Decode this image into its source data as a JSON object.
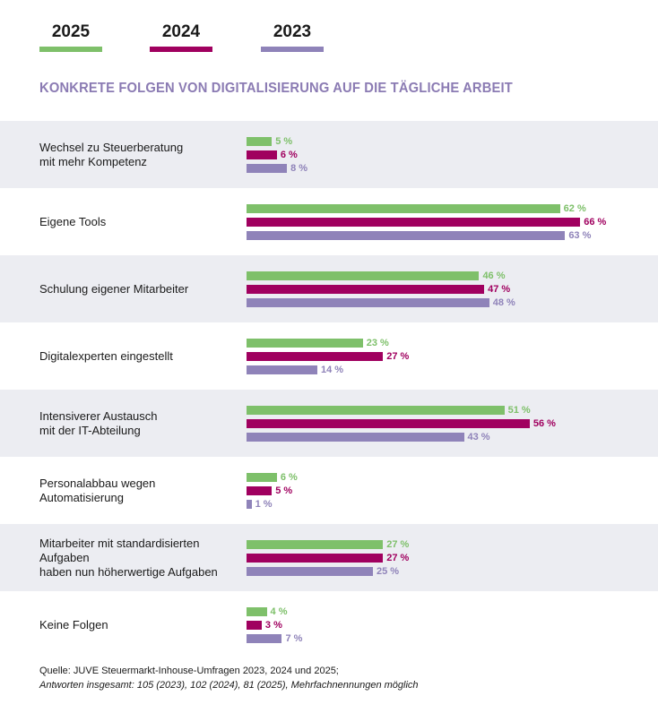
{
  "legend": [
    {
      "label": "2025",
      "color": "#7ec06a"
    },
    {
      "label": "2024",
      "color": "#a0005f"
    },
    {
      "label": "2023",
      "color": "#8f83b9"
    }
  ],
  "title": "KONKRETE FOLGEN VON DIGITALISIERUNG AUF DIE TÄGLICHE ARBEIT",
  "chart_data": {
    "type": "bar",
    "orientation": "horizontal",
    "title": "KONKRETE FOLGEN VON DIGITALISIERUNG AUF DIE TÄGLICHE ARBEIT",
    "categories": [
      "Wechsel zu Steuerberatung\nmit mehr Kompetenz",
      "Eigene Tools",
      "Schulung eigener Mitarbeiter",
      "Digitalexperten eingestellt",
      "Intensiverer Austausch\nmit der IT-Abteilung",
      "Personalabbau wegen Automatisierung",
      "Mitarbeiter mit standardisierten Aufgaben\nhaben nun höherwertige Aufgaben",
      "Keine Folgen"
    ],
    "series": [
      {
        "name": "2025",
        "color": "#7ec06a",
        "values": [
          5,
          62,
          46,
          23,
          51,
          6,
          27,
          4
        ],
        "labels": [
          "5 %",
          "62 %",
          "46 %",
          "23 %",
          "51 %",
          "6 %",
          "27 %",
          "4 %"
        ]
      },
      {
        "name": "2024",
        "color": "#a0005f",
        "values": [
          6,
          66,
          47,
          27,
          56,
          5,
          27,
          3
        ],
        "labels": [
          "6 %",
          "66 %",
          "47 %",
          "27 %",
          "56 %",
          "5 %",
          "27 %",
          "3 %"
        ]
      },
      {
        "name": "2023",
        "color": "#8f83b9",
        "values": [
          8,
          63,
          48,
          14,
          43,
          1,
          25,
          7
        ],
        "labels": [
          "8 %",
          "63 %",
          "48 %",
          "14 %",
          "43 %",
          "1 %",
          "25 %",
          "7 %"
        ]
      }
    ],
    "unit": "%",
    "legend_position": "top-left",
    "grid": false
  },
  "source": {
    "line1": "Quelle: JUVE Steuermarkt-Inhouse-Umfragen 2023, 2024 und 2025;",
    "line2": "Antworten insgesamt: 105 (2023), 102 (2024), 81 (2025), Mehrfachnennungen möglich"
  }
}
